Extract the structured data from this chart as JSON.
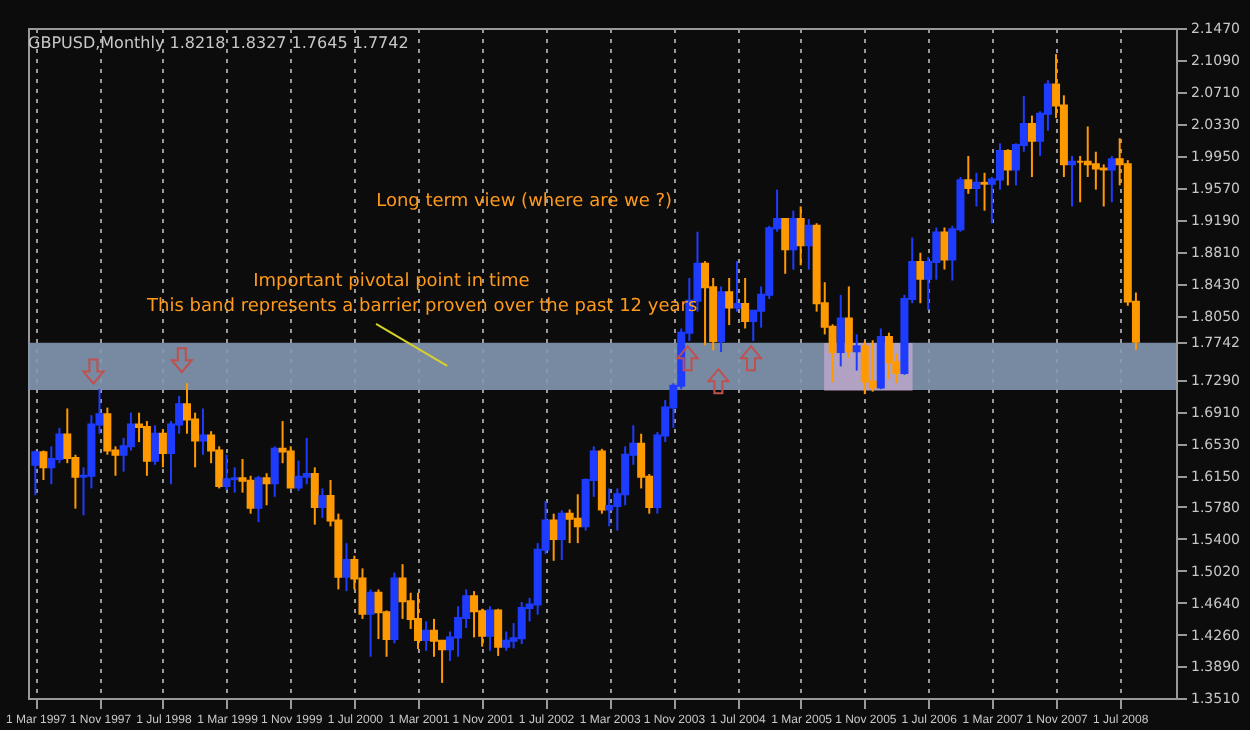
{
  "chart_data": {
    "type": "candlestick",
    "title": "GBPUSD,Monthly  1.8218 1.8327 1.7645 1.7742",
    "annotations": [
      "Long term view (where are we ?)",
      "Important pivotal point in time",
      "This band represents a barrier proven over the past 12 years"
    ],
    "x": [
      "1997-03",
      "1997-04",
      "1997-05",
      "1997-06",
      "1997-07",
      "1997-08",
      "1997-09",
      "1997-10",
      "1997-11",
      "1997-12",
      "1998-01",
      "1998-02",
      "1998-03",
      "1998-04",
      "1998-05",
      "1998-06",
      "1998-07",
      "1998-08",
      "1998-09",
      "1998-10",
      "1998-11",
      "1998-12",
      "1999-01",
      "1999-02",
      "1999-03",
      "1999-04",
      "1999-05",
      "1999-06",
      "1999-07",
      "1999-08",
      "1999-09",
      "1999-10",
      "1999-11",
      "1999-12",
      "2000-01",
      "2000-02",
      "2000-03",
      "2000-04",
      "2000-05",
      "2000-06",
      "2000-07",
      "2000-08",
      "2000-09",
      "2000-10",
      "2000-11",
      "2000-12",
      "2001-01",
      "2001-02",
      "2001-03",
      "2001-04",
      "2001-05",
      "2001-06",
      "2001-07",
      "2001-08",
      "2001-09",
      "2001-10",
      "2001-11",
      "2001-12",
      "2002-01",
      "2002-02",
      "2002-03",
      "2002-04",
      "2002-05",
      "2002-06",
      "2002-07",
      "2002-08",
      "2002-09",
      "2002-10",
      "2002-11",
      "2002-12",
      "2003-01",
      "2003-02",
      "2003-03",
      "2003-04",
      "2003-05",
      "2003-06",
      "2003-07",
      "2003-08",
      "2003-09",
      "2003-10",
      "2003-11",
      "2003-12",
      "2004-01",
      "2004-02",
      "2004-03",
      "2004-04",
      "2004-05",
      "2004-06",
      "2004-07",
      "2004-08",
      "2004-09",
      "2004-10",
      "2004-11",
      "2004-12",
      "2005-01",
      "2005-02",
      "2005-03",
      "2005-04",
      "2005-05",
      "2005-06",
      "2005-07",
      "2005-08",
      "2005-09",
      "2005-10",
      "2005-11",
      "2005-12",
      "2006-01",
      "2006-02",
      "2006-03",
      "2006-04",
      "2006-05",
      "2006-06",
      "2006-07",
      "2006-08",
      "2006-09",
      "2006-10",
      "2006-11",
      "2006-12",
      "2007-01",
      "2007-02",
      "2007-03",
      "2007-04",
      "2007-05",
      "2007-06",
      "2007-07",
      "2007-08",
      "2007-09",
      "2007-10",
      "2007-11",
      "2007-12",
      "2008-01",
      "2008-02",
      "2008-03",
      "2008-04",
      "2008-05",
      "2008-06",
      "2008-07",
      "2008-08",
      "2008-09"
    ],
    "ohlc": [
      [
        1.628,
        1.645,
        1.592,
        1.643
      ],
      [
        1.643,
        1.645,
        1.61,
        1.625
      ],
      [
        1.625,
        1.65,
        1.605,
        1.635
      ],
      [
        1.635,
        1.672,
        1.63,
        1.664
      ],
      [
        1.664,
        1.695,
        1.63,
        1.636
      ],
      [
        1.636,
        1.64,
        1.576,
        1.614
      ],
      [
        1.614,
        1.625,
        1.568,
        1.615
      ],
      [
        1.615,
        1.687,
        1.6,
        1.676
      ],
      [
        1.676,
        1.718,
        1.665,
        1.688
      ],
      [
        1.688,
        1.696,
        1.64,
        1.645
      ],
      [
        1.645,
        1.65,
        1.615,
        1.64
      ],
      [
        1.64,
        1.66,
        1.62,
        1.65
      ],
      [
        1.65,
        1.69,
        1.645,
        1.676
      ],
      [
        1.676,
        1.69,
        1.655,
        1.673
      ],
      [
        1.673,
        1.68,
        1.615,
        1.633
      ],
      [
        1.633,
        1.675,
        1.628,
        1.665
      ],
      [
        1.665,
        1.67,
        1.625,
        1.642
      ],
      [
        1.642,
        1.68,
        1.605,
        1.676
      ],
      [
        1.676,
        1.71,
        1.665,
        1.7
      ],
      [
        1.7,
        1.725,
        1.665,
        1.682
      ],
      [
        1.682,
        1.69,
        1.625,
        1.657
      ],
      [
        1.657,
        1.695,
        1.64,
        1.663
      ],
      [
        1.663,
        1.668,
        1.63,
        1.645
      ],
      [
        1.645,
        1.65,
        1.6,
        1.603
      ],
      [
        1.603,
        1.64,
        1.598,
        1.611
      ],
      [
        1.611,
        1.625,
        1.595,
        1.612
      ],
      [
        1.612,
        1.635,
        1.595,
        1.609
      ],
      [
        1.609,
        1.615,
        1.57,
        1.577
      ],
      [
        1.577,
        1.615,
        1.56,
        1.612
      ],
      [
        1.612,
        1.618,
        1.58,
        1.606
      ],
      [
        1.606,
        1.65,
        1.59,
        1.647
      ],
      [
        1.647,
        1.68,
        1.63,
        1.644
      ],
      [
        1.644,
        1.65,
        1.6,
        1.601
      ],
      [
        1.601,
        1.633,
        1.597,
        1.614
      ],
      [
        1.614,
        1.66,
        1.605,
        1.617
      ],
      [
        1.617,
        1.625,
        1.557,
        1.578
      ],
      [
        1.578,
        1.6,
        1.565,
        1.591
      ],
      [
        1.591,
        1.61,
        1.555,
        1.562
      ],
      [
        1.562,
        1.57,
        1.48,
        1.495
      ],
      [
        1.495,
        1.535,
        1.478,
        1.515
      ],
      [
        1.515,
        1.52,
        1.48,
        1.493
      ],
      [
        1.493,
        1.505,
        1.445,
        1.451
      ],
      [
        1.451,
        1.48,
        1.4,
        1.476
      ],
      [
        1.476,
        1.48,
        1.421,
        1.453
      ],
      [
        1.453,
        1.455,
        1.4,
        1.421
      ],
      [
        1.421,
        1.5,
        1.416,
        1.493
      ],
      [
        1.493,
        1.51,
        1.445,
        1.466
      ],
      [
        1.466,
        1.476,
        1.433,
        1.445
      ],
      [
        1.445,
        1.476,
        1.409,
        1.42
      ],
      [
        1.42,
        1.442,
        1.407,
        1.431
      ],
      [
        1.431,
        1.445,
        1.4,
        1.419
      ],
      [
        1.419,
        1.42,
        1.369,
        1.409
      ],
      [
        1.409,
        1.43,
        1.395,
        1.423
      ],
      [
        1.423,
        1.46,
        1.4,
        1.446
      ],
      [
        1.446,
        1.48,
        1.434,
        1.472
      ],
      [
        1.472,
        1.478,
        1.423,
        1.454
      ],
      [
        1.454,
        1.457,
        1.412,
        1.425
      ],
      [
        1.425,
        1.46,
        1.407,
        1.455
      ],
      [
        1.455,
        1.457,
        1.401,
        1.412
      ],
      [
        1.412,
        1.43,
        1.407,
        1.419
      ],
      [
        1.419,
        1.44,
        1.41,
        1.422
      ],
      [
        1.422,
        1.465,
        1.415,
        1.458
      ],
      [
        1.458,
        1.47,
        1.442,
        1.462
      ],
      [
        1.462,
        1.535,
        1.45,
        1.527
      ],
      [
        1.527,
        1.585,
        1.522,
        1.562
      ],
      [
        1.562,
        1.57,
        1.514,
        1.54
      ],
      [
        1.54,
        1.574,
        1.515,
        1.57
      ],
      [
        1.57,
        1.575,
        1.535,
        1.564
      ],
      [
        1.564,
        1.593,
        1.535,
        1.555
      ],
      [
        1.555,
        1.612,
        1.55,
        1.61
      ],
      [
        1.61,
        1.65,
        1.59,
        1.644
      ],
      [
        1.644,
        1.647,
        1.57,
        1.575
      ],
      [
        1.575,
        1.6,
        1.555,
        1.579
      ],
      [
        1.579,
        1.6,
        1.55,
        1.593
      ],
      [
        1.593,
        1.65,
        1.58,
        1.64
      ],
      [
        1.64,
        1.675,
        1.628,
        1.653
      ],
      [
        1.653,
        1.665,
        1.6,
        1.614
      ],
      [
        1.614,
        1.617,
        1.57,
        1.578
      ],
      [
        1.578,
        1.667,
        1.57,
        1.663
      ],
      [
        1.663,
        1.705,
        1.655,
        1.696
      ],
      [
        1.696,
        1.725,
        1.672,
        1.722
      ],
      [
        1.722,
        1.79,
        1.718,
        1.785
      ],
      [
        1.785,
        1.85,
        1.775,
        1.823
      ],
      [
        1.823,
        1.905,
        1.81,
        1.867
      ],
      [
        1.867,
        1.87,
        1.77,
        1.839
      ],
      [
        1.839,
        1.85,
        1.764,
        1.775
      ],
      [
        1.775,
        1.84,
        1.762,
        1.833
      ],
      [
        1.833,
        1.85,
        1.794,
        1.815
      ],
      [
        1.815,
        1.87,
        1.81,
        1.819
      ],
      [
        1.819,
        1.85,
        1.79,
        1.799
      ],
      [
        1.799,
        1.812,
        1.775,
        1.811
      ],
      [
        1.811,
        1.84,
        1.791,
        1.83
      ],
      [
        1.83,
        1.912,
        1.825,
        1.909
      ],
      [
        1.909,
        1.955,
        1.905,
        1.92
      ],
      [
        1.92,
        1.92,
        1.855,
        1.884
      ],
      [
        1.884,
        1.93,
        1.86,
        1.92
      ],
      [
        1.92,
        1.935,
        1.865,
        1.889
      ],
      [
        1.889,
        1.92,
        1.86,
        1.912
      ],
      [
        1.912,
        1.915,
        1.81,
        1.82
      ],
      [
        1.82,
        1.845,
        1.783,
        1.792
      ],
      [
        1.792,
        1.795,
        1.726,
        1.762
      ],
      [
        1.762,
        1.83,
        1.745,
        1.802
      ],
      [
        1.802,
        1.84,
        1.755,
        1.763
      ],
      [
        1.763,
        1.783,
        1.74,
        1.769
      ],
      [
        1.769,
        1.775,
        1.712,
        1.727
      ],
      [
        1.727,
        1.776,
        1.715,
        1.72
      ],
      [
        1.72,
        1.79,
        1.718,
        1.78
      ],
      [
        1.78,
        1.785,
        1.73,
        1.75
      ],
      [
        1.75,
        1.76,
        1.725,
        1.737
      ],
      [
        1.737,
        1.83,
        1.735,
        1.825
      ],
      [
        1.825,
        1.898,
        1.82,
        1.869
      ],
      [
        1.869,
        1.88,
        1.82,
        1.849
      ],
      [
        1.849,
        1.875,
        1.812,
        1.869
      ],
      [
        1.869,
        1.91,
        1.848,
        1.904
      ],
      [
        1.904,
        1.91,
        1.86,
        1.872
      ],
      [
        1.872,
        1.912,
        1.847,
        1.908
      ],
      [
        1.908,
        1.97,
        1.905,
        1.966
      ],
      [
        1.966,
        1.995,
        1.95,
        1.957
      ],
      [
        1.957,
        1.975,
        1.935,
        1.963
      ],
      [
        1.963,
        1.975,
        1.93,
        1.962
      ],
      [
        1.962,
        1.97,
        1.915,
        1.967
      ],
      [
        1.967,
        2.01,
        1.955,
        2.001
      ],
      [
        2.001,
        2.003,
        1.96,
        1.979
      ],
      [
        1.979,
        2.01,
        1.96,
        2.008
      ],
      [
        2.008,
        2.066,
        2.0,
        2.033
      ],
      [
        2.033,
        2.043,
        1.97,
        2.013
      ],
      [
        2.013,
        2.048,
        1.995,
        2.045
      ],
      [
        2.045,
        2.085,
        2.025,
        2.08
      ],
      [
        2.08,
        2.116,
        2.04,
        2.055
      ],
      [
        2.055,
        2.067,
        1.97,
        1.985
      ],
      [
        1.985,
        1.995,
        1.935,
        1.988
      ],
      [
        1.988,
        1.995,
        1.94,
        1.988
      ],
      [
        1.988,
        2.03,
        1.97,
        1.985
      ],
      [
        1.985,
        2.0,
        1.955,
        1.98
      ],
      [
        1.98,
        1.985,
        1.935,
        1.979
      ],
      [
        1.979,
        1.995,
        1.94,
        1.991
      ],
      [
        1.991,
        2.016,
        1.96,
        1.985
      ],
      [
        1.985,
        1.99,
        1.817,
        1.822
      ],
      [
        1.8218,
        1.8327,
        1.7645,
        1.7742
      ]
    ],
    "colors": [
      "#1e3cff",
      "#ff9900",
      "#1e3cff",
      "#1e3cff",
      "#ff9900",
      "#ff9900",
      "#1e3cff",
      "#1e3cff",
      "#1e3cff",
      "#ff9900",
      "#ff9900",
      "#1e3cff",
      "#1e3cff",
      "#ff9900",
      "#ff9900",
      "#1e3cff",
      "#ff9900",
      "#1e3cff",
      "#1e3cff",
      "#ff9900",
      "#ff9900",
      "#1e3cff",
      "#ff9900",
      "#ff9900",
      "#1e3cff",
      "#1e3cff",
      "#ff9900",
      "#ff9900",
      "#1e3cff",
      "#ff9900",
      "#1e3cff",
      "#ff9900",
      "#ff9900",
      "#1e3cff",
      "#1e3cff",
      "#ff9900",
      "#1e3cff",
      "#ff9900",
      "#ff9900",
      "#1e3cff",
      "#ff9900",
      "#ff9900",
      "#1e3cff",
      "#ff9900",
      "#ff9900",
      "#1e3cff",
      "#ff9900",
      "#ff9900",
      "#ff9900",
      "#1e3cff",
      "#ff9900",
      "#ff9900",
      "#1e3cff",
      "#1e3cff",
      "#1e3cff",
      "#ff9900",
      "#ff9900",
      "#1e3cff",
      "#ff9900",
      "#1e3cff",
      "#1e3cff",
      "#1e3cff",
      "#1e3cff",
      "#1e3cff",
      "#1e3cff",
      "#ff9900",
      "#1e3cff",
      "#ff9900",
      "#ff9900",
      "#1e3cff",
      "#1e3cff",
      "#ff9900",
      "#1e3cff",
      "#1e3cff",
      "#1e3cff",
      "#1e3cff",
      "#ff9900",
      "#ff9900",
      "#1e3cff",
      "#1e3cff",
      "#1e3cff",
      "#1e3cff",
      "#1e3cff",
      "#1e3cff",
      "#ff9900",
      "#ff9900",
      "#1e3cff",
      "#ff9900",
      "#1e3cff",
      "#ff9900",
      "#1e3cff",
      "#1e3cff",
      "#1e3cff",
      "#1e3cff",
      "#ff9900",
      "#1e3cff",
      "#ff9900",
      "#1e3cff",
      "#ff9900",
      "#ff9900",
      "#ff9900",
      "#1e3cff",
      "#ff9900",
      "#1e3cff",
      "#ff9900",
      "#ff9900",
      "#1e3cff",
      "#ff9900",
      "#ff9900",
      "#1e3cff",
      "#1e3cff",
      "#ff9900",
      "#1e3cff",
      "#1e3cff",
      "#ff9900",
      "#1e3cff",
      "#1e3cff",
      "#ff9900",
      "#1e3cff",
      "#ff9900",
      "#1e3cff",
      "#1e3cff",
      "#ff9900",
      "#1e3cff",
      "#1e3cff",
      "#ff9900",
      "#1e3cff",
      "#1e3cff",
      "#ff9900",
      "#ff9900",
      "#1e3cff",
      "#ff9900",
      "#ff9900",
      "#ff9900",
      "#ff9900",
      "#1e3cff",
      "#ff9900",
      "#ff9900",
      "#ff9900"
    ],
    "xlim": [
      "1997-02",
      "2009-02"
    ],
    "xticks": [
      {
        "value": "1997-03",
        "label": "1 Mar 1997"
      },
      {
        "value": "1997-11",
        "label": "1 Nov 1997"
      },
      {
        "value": "1998-07",
        "label": "1 Jul 1998"
      },
      {
        "value": "1999-03",
        "label": "1 Mar 1999"
      },
      {
        "value": "1999-11",
        "label": "1 Nov 1999"
      },
      {
        "value": "2000-07",
        "label": "1 Jul 2000"
      },
      {
        "value": "2001-03",
        "label": "1 Mar 2001"
      },
      {
        "value": "2001-11",
        "label": "1 Nov 2001"
      },
      {
        "value": "2002-07",
        "label": "1 Jul 2002"
      },
      {
        "value": "2003-03",
        "label": "1 Mar 2003"
      },
      {
        "value": "2003-11",
        "label": "1 Nov 2003"
      },
      {
        "value": "2004-07",
        "label": "1 Jul 2004"
      },
      {
        "value": "2005-03",
        "label": "1 Mar 2005"
      },
      {
        "value": "2005-11",
        "label": "1 Nov 2005"
      },
      {
        "value": "2006-07",
        "label": "1 Jul 2006"
      },
      {
        "value": "2007-03",
        "label": "1 Mar 2007"
      },
      {
        "value": "2007-11",
        "label": "1 Nov 2007"
      },
      {
        "value": "2008-07",
        "label": "1 Jul 2008"
      }
    ],
    "ylim": [
      1.351,
      2.147
    ],
    "yticks": [
      {
        "value": 2.147,
        "label": "2.1470"
      },
      {
        "value": 2.109,
        "label": "2.1090"
      },
      {
        "value": 2.071,
        "label": "2.0710"
      },
      {
        "value": 2.033,
        "label": "2.0330"
      },
      {
        "value": 1.995,
        "label": "1.9950"
      },
      {
        "value": 1.957,
        "label": "1.9570"
      },
      {
        "value": 1.919,
        "label": "1.9190"
      },
      {
        "value": 1.881,
        "label": "1.8810"
      },
      {
        "value": 1.843,
        "label": "1.8430"
      },
      {
        "value": 1.805,
        "label": "1.8050"
      },
      1.7742,
      {
        "value": 1.729,
        "label": "1.7290"
      },
      {
        "value": 1.691,
        "label": "1.6910"
      },
      {
        "value": 1.653,
        "label": "1.6530"
      },
      {
        "value": 1.615,
        "label": "1.6150"
      },
      {
        "value": 1.578,
        "label": "1.5780"
      },
      {
        "value": 1.54,
        "label": "1.5400"
      },
      {
        "value": 1.502,
        "label": "1.5020"
      },
      {
        "value": 1.464,
        "label": "1.4640"
      },
      {
        "value": 1.426,
        "label": "1.4260"
      },
      {
        "value": 1.389,
        "label": "1.3890"
      },
      {
        "value": 1.351,
        "label": "1.3510"
      }
    ],
    "bands": [
      {
        "axis": "y",
        "from": 1.717,
        "to": 1.773,
        "color": "#8497b3"
      }
    ],
    "grid": "x"
  }
}
